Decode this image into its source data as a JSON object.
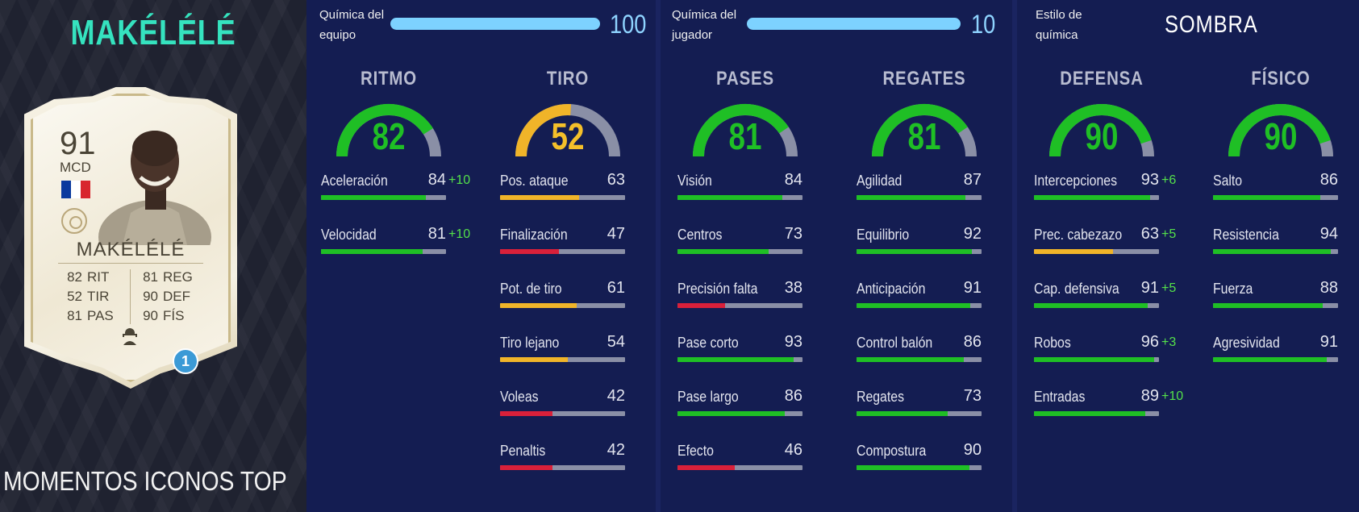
{
  "player": {
    "title": "MAKÉLÉLÉ",
    "version": "MOMENTOS ICONOS TOP"
  },
  "card": {
    "rating": "91",
    "position": "MCD",
    "name": "MAKÉLÉLÉ",
    "stats_left": [
      {
        "value": "82",
        "label": "RIT"
      },
      {
        "value": "52",
        "label": "TIR"
      },
      {
        "value": "81",
        "label": "PAS"
      }
    ],
    "stats_right": [
      {
        "value": "81",
        "label": "REG"
      },
      {
        "value": "90",
        "label": "DEF"
      },
      {
        "value": "90",
        "label": "FÍS"
      }
    ],
    "chemistry_badge": "1",
    "flag_colors": [
      "#0a3a9e",
      "#ffffff",
      "#d8262e"
    ]
  },
  "chemistry": {
    "team_label_1": "Química del",
    "team_label_2": "equipo",
    "team_value": "100",
    "team_fraction": 1.0,
    "player_label_1": "Química del",
    "player_label_2": "jugador",
    "player_value": "10",
    "player_fraction": 1.0,
    "style_label_1": "Estilo de",
    "style_label_2": "química",
    "style_value": "SOMBRA"
  },
  "colors": {
    "green": "#1fbf25",
    "yellow": "#f0b429",
    "red": "#d9203a",
    "track": "#8a8fa6",
    "gauge_green_text": "#1fbf25",
    "gauge_yellow_text": "#f5c02a"
  },
  "categories": [
    {
      "title": "RITMO",
      "value": "82",
      "fraction": 0.82,
      "color": "green",
      "attributes": [
        {
          "label": "Aceleración",
          "value": "84",
          "fraction": 0.84,
          "color": "green",
          "boost": "+10"
        },
        {
          "label": "Velocidad",
          "value": "81",
          "fraction": 0.81,
          "color": "green",
          "boost": "+10"
        }
      ]
    },
    {
      "title": "TIRO",
      "value": "52",
      "fraction": 0.52,
      "color": "yellow",
      "attributes": [
        {
          "label": "Pos. ataque",
          "value": "63",
          "fraction": 0.63,
          "color": "yellow",
          "boost": ""
        },
        {
          "label": "Finalización",
          "value": "47",
          "fraction": 0.47,
          "color": "red",
          "boost": ""
        },
        {
          "label": "Pot. de tiro",
          "value": "61",
          "fraction": 0.61,
          "color": "yellow",
          "boost": ""
        },
        {
          "label": "Tiro lejano",
          "value": "54",
          "fraction": 0.54,
          "color": "yellow",
          "boost": ""
        },
        {
          "label": "Voleas",
          "value": "42",
          "fraction": 0.42,
          "color": "red",
          "boost": ""
        },
        {
          "label": "Penaltis",
          "value": "42",
          "fraction": 0.42,
          "color": "red",
          "boost": ""
        }
      ]
    },
    {
      "title": "PASES",
      "value": "81",
      "fraction": 0.81,
      "color": "green",
      "attributes": [
        {
          "label": "Visión",
          "value": "84",
          "fraction": 0.84,
          "color": "green",
          "boost": ""
        },
        {
          "label": "Centros",
          "value": "73",
          "fraction": 0.73,
          "color": "green",
          "boost": ""
        },
        {
          "label": "Precisión falta",
          "value": "38",
          "fraction": 0.38,
          "color": "red",
          "boost": ""
        },
        {
          "label": "Pase corto",
          "value": "93",
          "fraction": 0.93,
          "color": "green",
          "boost": ""
        },
        {
          "label": "Pase largo",
          "value": "86",
          "fraction": 0.86,
          "color": "green",
          "boost": ""
        },
        {
          "label": "Efecto",
          "value": "46",
          "fraction": 0.46,
          "color": "red",
          "boost": ""
        }
      ]
    },
    {
      "title": "REGATES",
      "value": "81",
      "fraction": 0.81,
      "color": "green",
      "attributes": [
        {
          "label": "Agilidad",
          "value": "87",
          "fraction": 0.87,
          "color": "green",
          "boost": ""
        },
        {
          "label": "Equilibrio",
          "value": "92",
          "fraction": 0.92,
          "color": "green",
          "boost": ""
        },
        {
          "label": "Anticipación",
          "value": "91",
          "fraction": 0.91,
          "color": "green",
          "boost": ""
        },
        {
          "label": "Control balón",
          "value": "86",
          "fraction": 0.86,
          "color": "green",
          "boost": ""
        },
        {
          "label": "Regates",
          "value": "73",
          "fraction": 0.73,
          "color": "green",
          "boost": ""
        },
        {
          "label": "Compostura",
          "value": "90",
          "fraction": 0.9,
          "color": "green",
          "boost": ""
        }
      ]
    },
    {
      "title": "DEFENSA",
      "value": "90",
      "fraction": 0.9,
      "color": "green",
      "attributes": [
        {
          "label": "Intercepciones",
          "value": "93",
          "fraction": 0.93,
          "color": "green",
          "boost": "+6"
        },
        {
          "label": "Prec. cabezazo",
          "value": "63",
          "fraction": 0.63,
          "color": "yellow",
          "boost": "+5"
        },
        {
          "label": "Cap. defensiva",
          "value": "91",
          "fraction": 0.91,
          "color": "green",
          "boost": "+5"
        },
        {
          "label": "Robos",
          "value": "96",
          "fraction": 0.96,
          "color": "green",
          "boost": "+3"
        },
        {
          "label": "Entradas",
          "value": "89",
          "fraction": 0.89,
          "color": "green",
          "boost": "+10"
        }
      ]
    },
    {
      "title": "FÍSICO",
      "value": "90",
      "fraction": 0.9,
      "color": "green",
      "attributes": [
        {
          "label": "Salto",
          "value": "86",
          "fraction": 0.86,
          "color": "green",
          "boost": ""
        },
        {
          "label": "Resistencia",
          "value": "94",
          "fraction": 0.94,
          "color": "green",
          "boost": ""
        },
        {
          "label": "Fuerza",
          "value": "88",
          "fraction": 0.88,
          "color": "green",
          "boost": ""
        },
        {
          "label": "Agresividad",
          "value": "91",
          "fraction": 0.91,
          "color": "green",
          "boost": ""
        }
      ]
    }
  ]
}
